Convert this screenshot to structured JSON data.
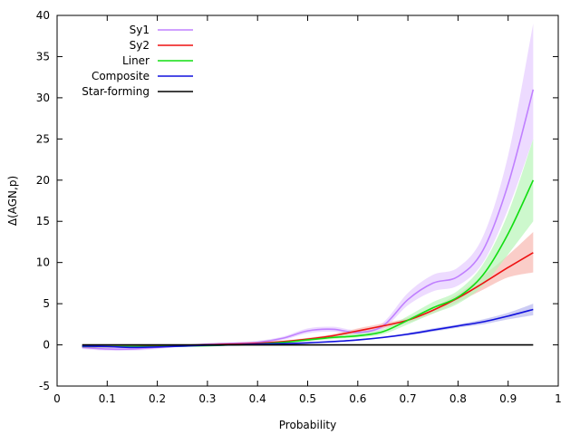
{
  "chart_data": {
    "type": "line",
    "title": "",
    "xlabel": "Probability",
    "ylabel": "Δ(AGN,p)",
    "xlim": [
      0,
      1
    ],
    "ylim": [
      -5,
      40
    ],
    "x_ticks": [
      0,
      0.1,
      0.2,
      0.3,
      0.4,
      0.5,
      0.6,
      0.7,
      0.8,
      0.9,
      1
    ],
    "x_tick_labels": [
      "0",
      "0.1",
      "0.2",
      "0.3",
      "0.4",
      "0.5",
      "0.6",
      "0.7",
      "0.8",
      "0.9",
      "1"
    ],
    "y_ticks": [
      -5,
      0,
      5,
      10,
      15,
      20,
      25,
      30,
      35,
      40
    ],
    "y_tick_labels": [
      "-5",
      "0",
      "5",
      "10",
      "15",
      "20",
      "25",
      "30",
      "35",
      "40"
    ],
    "grid": false,
    "legend_position": "top-left",
    "series": [
      {
        "name": "Sy1",
        "color": "#c080ff",
        "band_color": "#e6ccff",
        "x": [
          0.05,
          0.1,
          0.15,
          0.2,
          0.25,
          0.3,
          0.35,
          0.4,
          0.45,
          0.5,
          0.55,
          0.6,
          0.65,
          0.7,
          0.75,
          0.8,
          0.85,
          0.9,
          0.95
        ],
        "y": [
          -0.3,
          -0.5,
          -0.5,
          -0.3,
          -0.1,
          0.1,
          0.2,
          0.3,
          0.8,
          1.7,
          1.9,
          1.5,
          2.3,
          5.5,
          7.5,
          8.3,
          11.5,
          19.5,
          31.0
        ],
        "lower": [
          -0.5,
          -0.7,
          -0.7,
          -0.5,
          -0.2,
          0.0,
          0.1,
          0.2,
          0.6,
          1.4,
          1.6,
          1.2,
          1.9,
          4.8,
          6.5,
          7.2,
          10.0,
          16.5,
          25.0
        ],
        "upper": [
          -0.1,
          -0.3,
          -0.3,
          -0.1,
          0.0,
          0.2,
          0.3,
          0.5,
          1.0,
          2.0,
          2.2,
          1.8,
          2.7,
          6.3,
          8.5,
          9.4,
          13.2,
          23.0,
          39.0
        ]
      },
      {
        "name": "Sy2",
        "color": "#ee1111",
        "band_color": "#f8b8b0",
        "x": [
          0.05,
          0.1,
          0.15,
          0.2,
          0.25,
          0.3,
          0.35,
          0.4,
          0.45,
          0.5,
          0.55,
          0.6,
          0.65,
          0.7,
          0.75,
          0.8,
          0.85,
          0.9,
          0.95
        ],
        "y": [
          -0.2,
          -0.2,
          -0.2,
          -0.1,
          -0.05,
          0.0,
          0.1,
          0.2,
          0.4,
          0.7,
          1.1,
          1.7,
          2.3,
          3.0,
          4.2,
          5.7,
          7.5,
          9.4,
          11.2
        ],
        "lower": [
          -0.3,
          -0.3,
          -0.3,
          -0.2,
          -0.1,
          -0.05,
          0.05,
          0.1,
          0.3,
          0.55,
          0.9,
          1.4,
          2.0,
          2.7,
          3.8,
          5.2,
          6.7,
          8.2,
          8.8
        ],
        "upper": [
          -0.1,
          -0.1,
          -0.1,
          0.0,
          0.0,
          0.05,
          0.15,
          0.3,
          0.5,
          0.85,
          1.3,
          2.0,
          2.6,
          3.3,
          4.6,
          6.2,
          8.4,
          10.9,
          13.7
        ]
      },
      {
        "name": "Liner",
        "color": "#11dd11",
        "band_color": "#b8f5b8",
        "x": [
          0.05,
          0.1,
          0.15,
          0.2,
          0.25,
          0.3,
          0.35,
          0.4,
          0.45,
          0.5,
          0.55,
          0.6,
          0.65,
          0.7,
          0.75,
          0.8,
          0.85,
          0.9,
          0.95
        ],
        "y": [
          -0.2,
          -0.2,
          -0.2,
          -0.2,
          -0.15,
          -0.1,
          0.0,
          0.1,
          0.3,
          0.6,
          0.9,
          1.1,
          1.6,
          3.0,
          4.5,
          5.8,
          8.5,
          13.5,
          20.0
        ],
        "lower": [
          -0.3,
          -0.3,
          -0.3,
          -0.3,
          -0.2,
          -0.15,
          -0.05,
          0.05,
          0.2,
          0.45,
          0.7,
          0.9,
          1.3,
          2.5,
          3.8,
          5.0,
          7.2,
          11.0,
          15.0
        ],
        "upper": [
          -0.1,
          -0.1,
          -0.1,
          -0.1,
          -0.1,
          -0.05,
          0.05,
          0.2,
          0.4,
          0.75,
          1.1,
          1.4,
          1.9,
          3.5,
          5.2,
          6.6,
          9.8,
          16.0,
          25.0
        ]
      },
      {
        "name": "Composite",
        "color": "#1111dd",
        "band_color": "#b8b8f0",
        "x": [
          0.05,
          0.1,
          0.15,
          0.2,
          0.25,
          0.3,
          0.35,
          0.4,
          0.45,
          0.5,
          0.55,
          0.6,
          0.65,
          0.7,
          0.75,
          0.8,
          0.85,
          0.9,
          0.95
        ],
        "y": [
          -0.15,
          -0.2,
          -0.3,
          -0.25,
          -0.15,
          -0.05,
          0.0,
          0.1,
          0.15,
          0.25,
          0.4,
          0.6,
          0.9,
          1.3,
          1.8,
          2.3,
          2.8,
          3.5,
          4.3
        ],
        "lower": [
          -0.25,
          -0.3,
          -0.4,
          -0.35,
          -0.25,
          -0.1,
          -0.05,
          0.05,
          0.1,
          0.2,
          0.35,
          0.5,
          0.8,
          1.15,
          1.6,
          2.1,
          2.5,
          3.1,
          3.6
        ],
        "upper": [
          -0.05,
          -0.1,
          -0.2,
          -0.15,
          -0.05,
          0.0,
          0.05,
          0.15,
          0.2,
          0.3,
          0.45,
          0.7,
          1.0,
          1.45,
          2.0,
          2.5,
          3.1,
          3.9,
          5.0
        ]
      },
      {
        "name": "Star-forming",
        "color": "#000000",
        "band_color": "",
        "x": [
          0.05,
          0.95
        ],
        "y": [
          0,
          0
        ]
      }
    ]
  }
}
